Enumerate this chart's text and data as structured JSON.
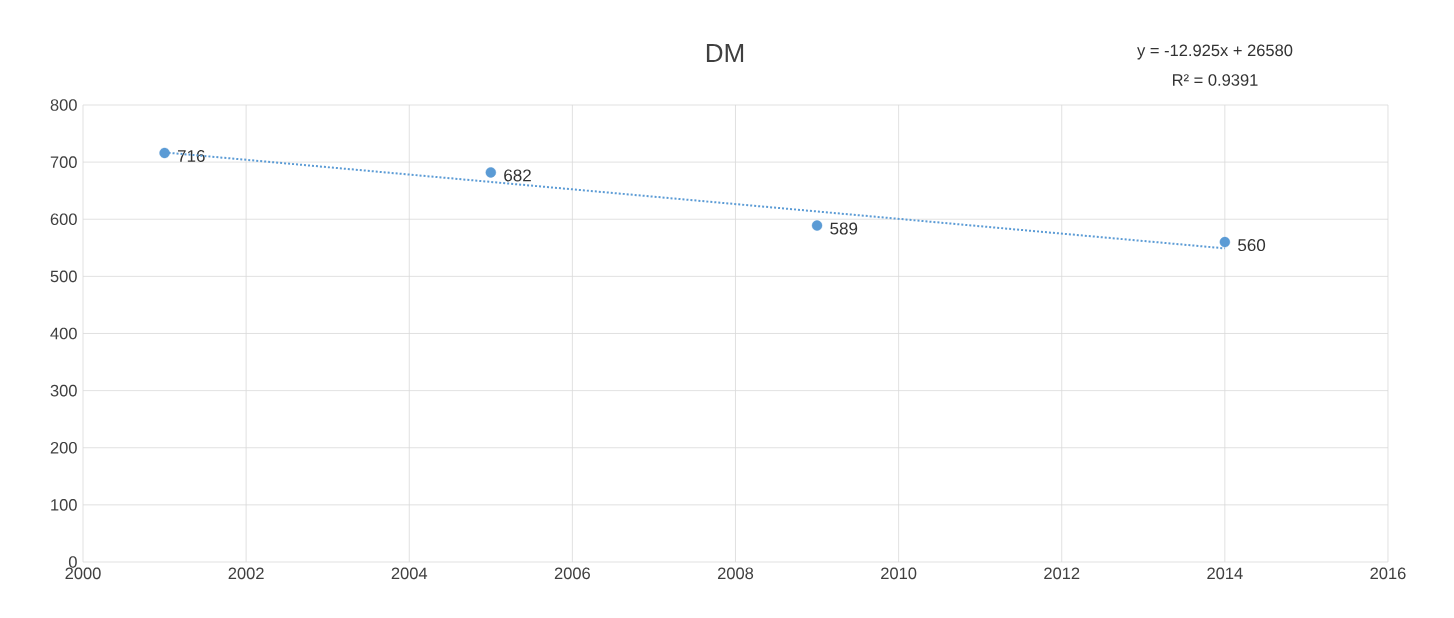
{
  "chart_data": {
    "type": "scatter",
    "title": "DM",
    "x": [
      2001,
      2005,
      2009,
      2014
    ],
    "series": [
      {
        "color": "#5b9bd5",
        "values": [
          716,
          682,
          589,
          560
        ],
        "value_labels": [
          "716",
          "682",
          "589",
          "560"
        ],
        "marker": "circle"
      },
      {
        "type": "line",
        "color": "#5b9bd5",
        "x": [
          2001,
          2014
        ],
        "values": [
          717,
          549
        ],
        "line_style": "dotted",
        "marker": "none"
      }
    ],
    "annotations": [
      "y = -12.925x + 26580",
      "R² = 0.9391"
    ],
    "xlim": [
      2000,
      2016
    ],
    "xticks": [
      2000,
      2002,
      2004,
      2006,
      2008,
      2010,
      2012,
      2014,
      2016
    ],
    "ylim": [
      0,
      800
    ],
    "yticks": [
      0,
      100,
      200,
      300,
      400,
      500,
      600,
      700,
      800
    ],
    "grid": true
  }
}
